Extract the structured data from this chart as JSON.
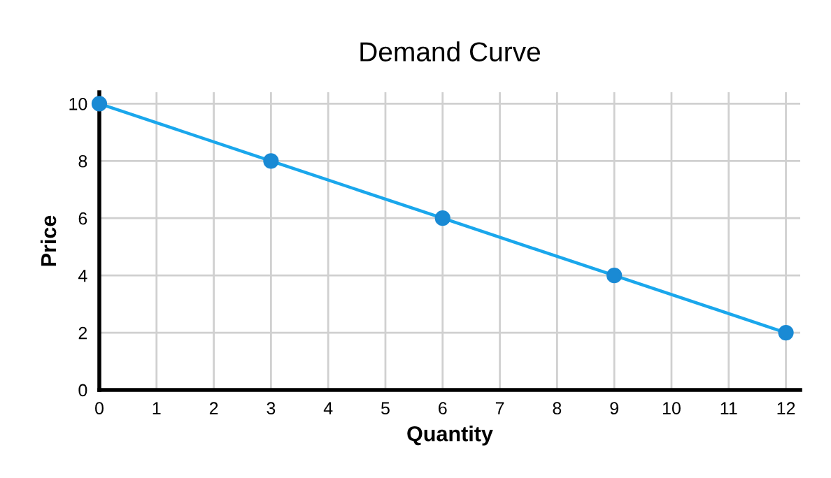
{
  "chart_data": {
    "type": "line",
    "title": "Demand Curve",
    "xlabel": "Quantity",
    "ylabel": "Price",
    "x": [
      0,
      3,
      6,
      9,
      12
    ],
    "series": [
      {
        "color": "#1aa7ec",
        "values": [
          10,
          8,
          6,
          4,
          2
        ]
      }
    ],
    "xlim": [
      0,
      12.25
    ],
    "ylim": [
      0,
      10.4
    ],
    "xticks": [
      0,
      1,
      2,
      3,
      4,
      5,
      6,
      7,
      8,
      9,
      10,
      11,
      12
    ],
    "yticks": [
      0,
      2,
      4,
      6,
      8,
      10
    ],
    "grid": true,
    "marker": "circle",
    "line_style": "solid",
    "legend": false
  }
}
